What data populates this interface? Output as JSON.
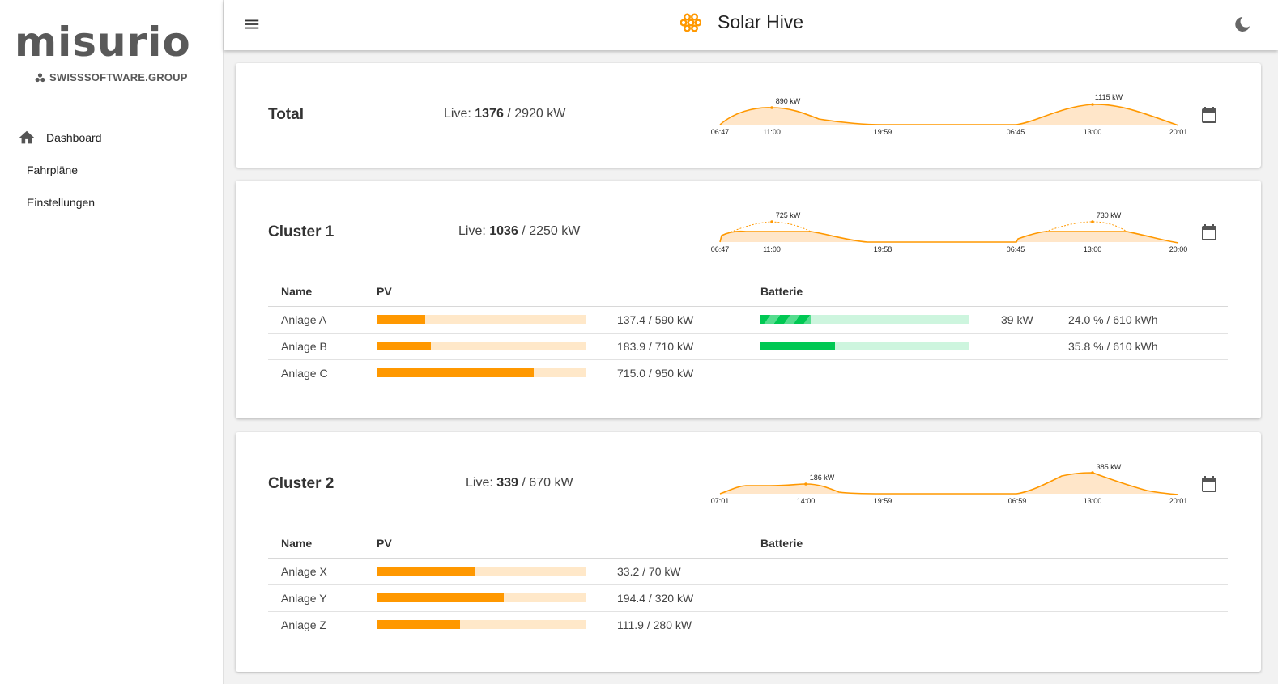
{
  "brand": {
    "logo_text": "misurio",
    "logo_subtext": "SWISSSOFTWARE.GROUP"
  },
  "nav": {
    "items": [
      {
        "label": "Dashboard",
        "icon": "home-icon"
      },
      {
        "label": "Fahrpläne"
      },
      {
        "label": "Einstellungen"
      }
    ]
  },
  "topbar": {
    "title": "Solar Hive",
    "menu_icon": "menu-icon",
    "app_icon": "honeycomb-icon",
    "theme_icon": "moon-icon"
  },
  "colors": {
    "pv": "#ff9800",
    "pv_track": "#ffe8c9",
    "battery": "#00c853",
    "battery_track": "#cdf5de"
  },
  "table_headers": {
    "name": "Name",
    "pv": "PV",
    "battery": "Batterie"
  },
  "cards": [
    {
      "title": "Total",
      "live_label": "Live:",
      "live_value": "1376",
      "live_capacity": "/ 2920 kW",
      "chart_ticks": [
        "06:47",
        "11:00",
        "19:59",
        "06:45",
        "13:00",
        "20:01"
      ],
      "peak_labels": [
        "890 kW",
        "1115 kW"
      ],
      "chart_data": {
        "type": "area",
        "x": [
          "06:47",
          "11:00",
          "19:59",
          "06:45",
          "13:00",
          "20:01"
        ],
        "peaks": [
          {
            "x": "11:00",
            "value": 890,
            "unit": "kW"
          },
          {
            "x": "13:00",
            "value": 1115,
            "unit": "kW"
          }
        ]
      }
    },
    {
      "title": "Cluster 1",
      "live_label": "Live:",
      "live_value": "1036",
      "live_capacity": "/ 2250 kW",
      "chart_ticks": [
        "06:47",
        "11:00",
        "19:58",
        "06:45",
        "13:00",
        "20:00"
      ],
      "peak_labels": [
        "725 kW",
        "730 kW"
      ],
      "chart_data": {
        "type": "area",
        "x": [
          "06:47",
          "11:00",
          "19:58",
          "06:45",
          "13:00",
          "20:00"
        ],
        "peaks": [
          {
            "x": "11:00",
            "value": 725,
            "unit": "kW"
          },
          {
            "x": "13:00",
            "value": 730,
            "unit": "kW"
          }
        ]
      },
      "plants": [
        {
          "name": "Anlage A",
          "pv_text": "137.4 / 590 kW",
          "pv_fraction": 0.233,
          "battery": {
            "fraction": 0.24,
            "charging": true,
            "power": "39 kW",
            "text": "24.0 % / 610 kWh"
          }
        },
        {
          "name": "Anlage B",
          "pv_text": "183.9 / 710 kW",
          "pv_fraction": 0.259,
          "battery": {
            "fraction": 0.358,
            "charging": false,
            "power": "",
            "text": "35.8 % / 610 kWh"
          }
        },
        {
          "name": "Anlage C",
          "pv_text": "715.0 / 950 kW",
          "pv_fraction": 0.753
        }
      ]
    },
    {
      "title": "Cluster 2",
      "live_label": "Live:",
      "live_value": "339",
      "live_capacity": "/ 670 kW",
      "chart_ticks": [
        "07:01",
        "14:00",
        "19:59",
        "06:59",
        "13:00",
        "20:01"
      ],
      "peak_labels": [
        "186 kW",
        "385 kW"
      ],
      "chart_data": {
        "type": "area",
        "x": [
          "07:01",
          "14:00",
          "19:59",
          "06:59",
          "13:00",
          "20:01"
        ],
        "peaks": [
          {
            "x": "14:00",
            "value": 186,
            "unit": "kW"
          },
          {
            "x": "13:00",
            "value": 385,
            "unit": "kW"
          }
        ]
      },
      "plants": [
        {
          "name": "Anlage X",
          "pv_text": "33.2 / 70 kW",
          "pv_fraction": 0.474
        },
        {
          "name": "Anlage Y",
          "pv_text": "194.4 / 320 kW",
          "pv_fraction": 0.608
        },
        {
          "name": "Anlage Z",
          "pv_text": "111.9 / 280 kW",
          "pv_fraction": 0.4
        }
      ]
    }
  ]
}
